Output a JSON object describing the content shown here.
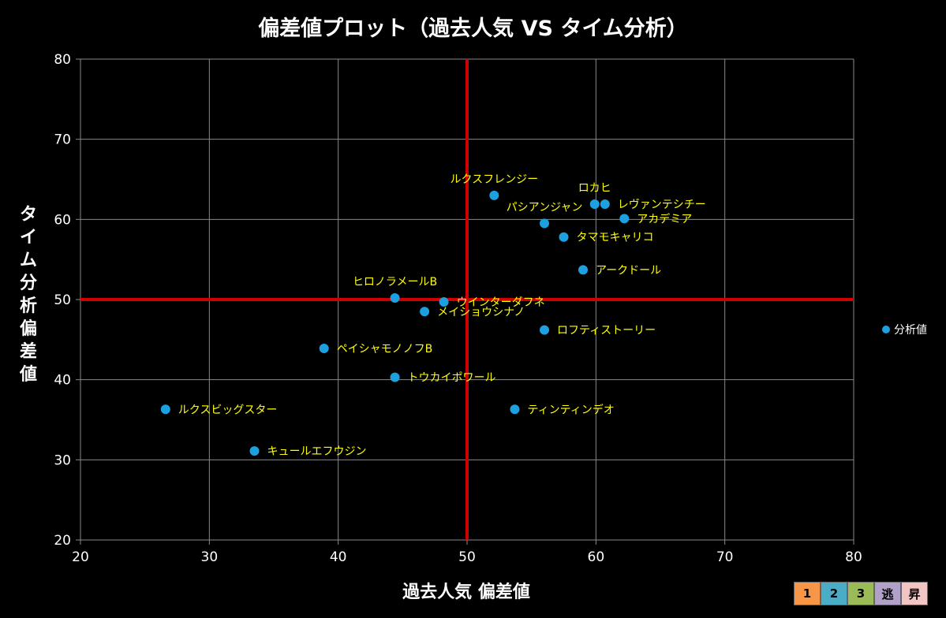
{
  "chart_data": {
    "type": "scatter",
    "title": "偏差値プロット（過去人気 VS タイム分析）",
    "xlabel": "過去人気 偏差値",
    "ylabel": "タイム分析\n偏差値",
    "xlim": [
      20,
      80
    ],
    "ylim": [
      20,
      80
    ],
    "xticks": [
      20,
      30,
      40,
      50,
      60,
      70,
      80
    ],
    "yticks": [
      20,
      30,
      40,
      50,
      60,
      70,
      80
    ],
    "grid": true,
    "reference_lines": {
      "x": 50,
      "y": 50,
      "color": "#d00000"
    },
    "series": [
      {
        "name": "分析値",
        "color": "#1ca0e0",
        "points": [
          {
            "label": "ルクスフレンジー",
            "x": 52.1,
            "y": 63.0
          },
          {
            "label": "ロカヒ",
            "x": 59.9,
            "y": 61.9
          },
          {
            "label": "レヴァンテシチー",
            "x": 60.7,
            "y": 61.9
          },
          {
            "label": "アカデミア",
            "x": 62.2,
            "y": 60.1
          },
          {
            "label": "パシアンジャン",
            "x": 56.0,
            "y": 59.5
          },
          {
            "label": "タマモキャリコ",
            "x": 57.5,
            "y": 57.8
          },
          {
            "label": "アークドール",
            "x": 59.0,
            "y": 53.7
          },
          {
            "label": "ヒロノラメールB",
            "x": 44.4,
            "y": 50.2
          },
          {
            "label": "ウインターダフネ",
            "x": 48.2,
            "y": 49.7
          },
          {
            "label": "メイショウシナノ",
            "x": 46.7,
            "y": 48.5
          },
          {
            "label": "ロフティストーリー",
            "x": 56.0,
            "y": 46.2
          },
          {
            "label": "ペイシャモノノフB",
            "x": 38.9,
            "y": 43.9
          },
          {
            "label": "トウカイポワール",
            "x": 44.4,
            "y": 40.3
          },
          {
            "label": "ルクスビッグスター",
            "x": 26.6,
            "y": 36.3
          },
          {
            "label": "ティンティンデオ",
            "x": 53.7,
            "y": 36.3
          },
          {
            "label": "キュールエフウジン",
            "x": 33.5,
            "y": 31.1
          }
        ]
      }
    ]
  },
  "legend": {
    "dot_color": "#1ca0e0",
    "label": "分析値",
    "position": "right"
  },
  "badges": [
    {
      "label": "1",
      "color": "#f79646"
    },
    {
      "label": "2",
      "color": "#4bacc6"
    },
    {
      "label": "3",
      "color": "#9bbb59"
    },
    {
      "label": "逃",
      "color": "#b1a0c7"
    },
    {
      "label": "昇",
      "color": "#f2c4c4"
    }
  ]
}
